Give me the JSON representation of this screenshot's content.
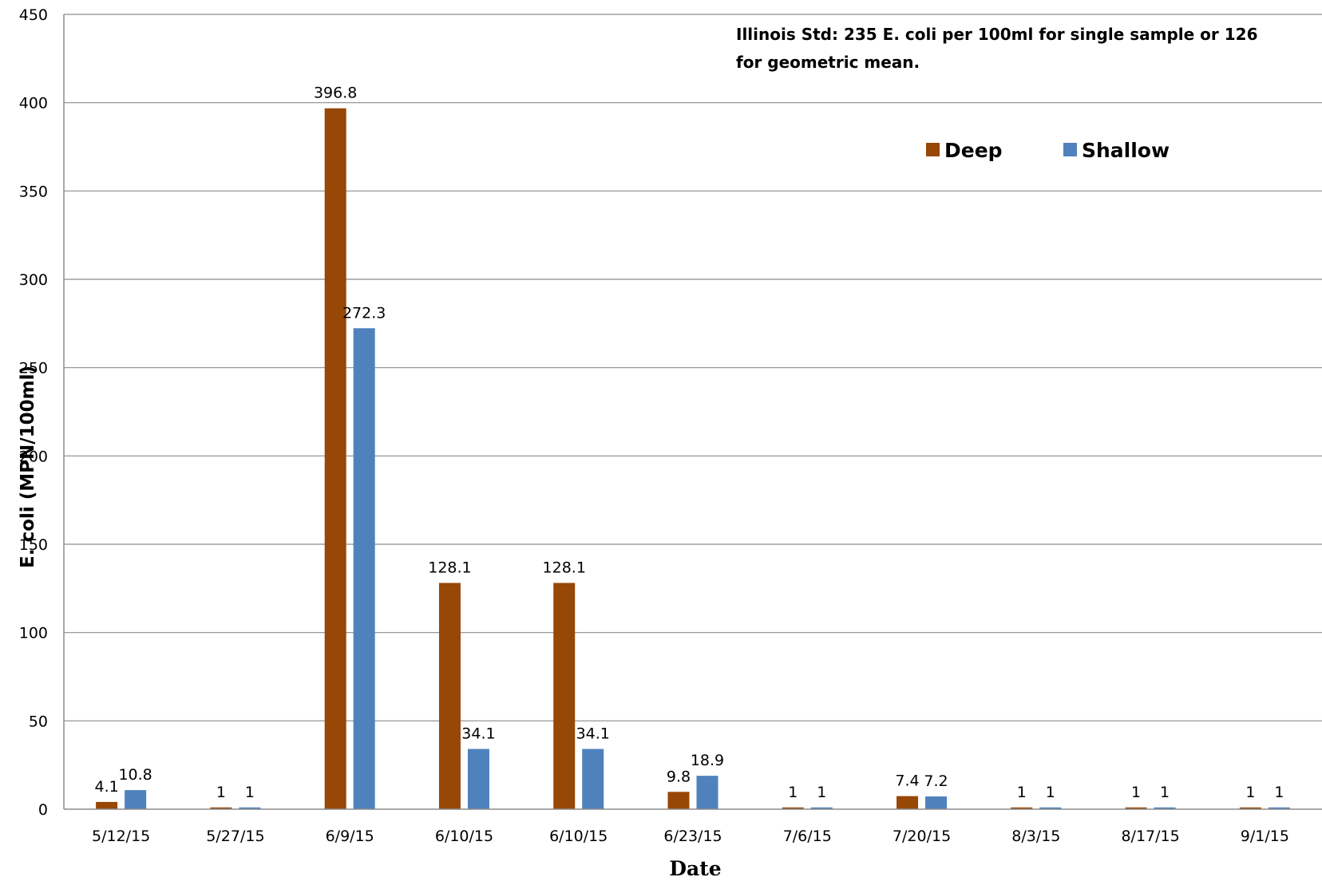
{
  "chart_data": {
    "type": "bar",
    "categories": [
      "5/12/15",
      "5/27/15",
      "6/9/15",
      "6/10/15",
      "6/10/15",
      "6/23/15",
      "7/6/15",
      "7/20/15",
      "8/3/15",
      "8/17/15",
      "9/1/15"
    ],
    "series": [
      {
        "name": "Deep",
        "color": "#974706",
        "values": [
          4.1,
          1,
          396.8,
          128.1,
          128.1,
          9.8,
          1,
          7.4,
          1,
          1,
          1
        ]
      },
      {
        "name": "Shallow",
        "color": "#4f81bd",
        "values": [
          10.8,
          1,
          272.3,
          34.1,
          34.1,
          18.9,
          1,
          7.2,
          1,
          1,
          1
        ]
      }
    ],
    "xlabel": "Date",
    "ylabel": "E. coli (MPN/100ml)",
    "ylim": [
      0,
      450
    ],
    "yticks": [
      0,
      50,
      100,
      150,
      200,
      250,
      300,
      350,
      400,
      450
    ],
    "grid": true,
    "legend_position": "top-right",
    "annotation": [
      "Illinois Std:  235 E. coli per 100ml for single sample or 126",
      "for geometric mean."
    ]
  }
}
